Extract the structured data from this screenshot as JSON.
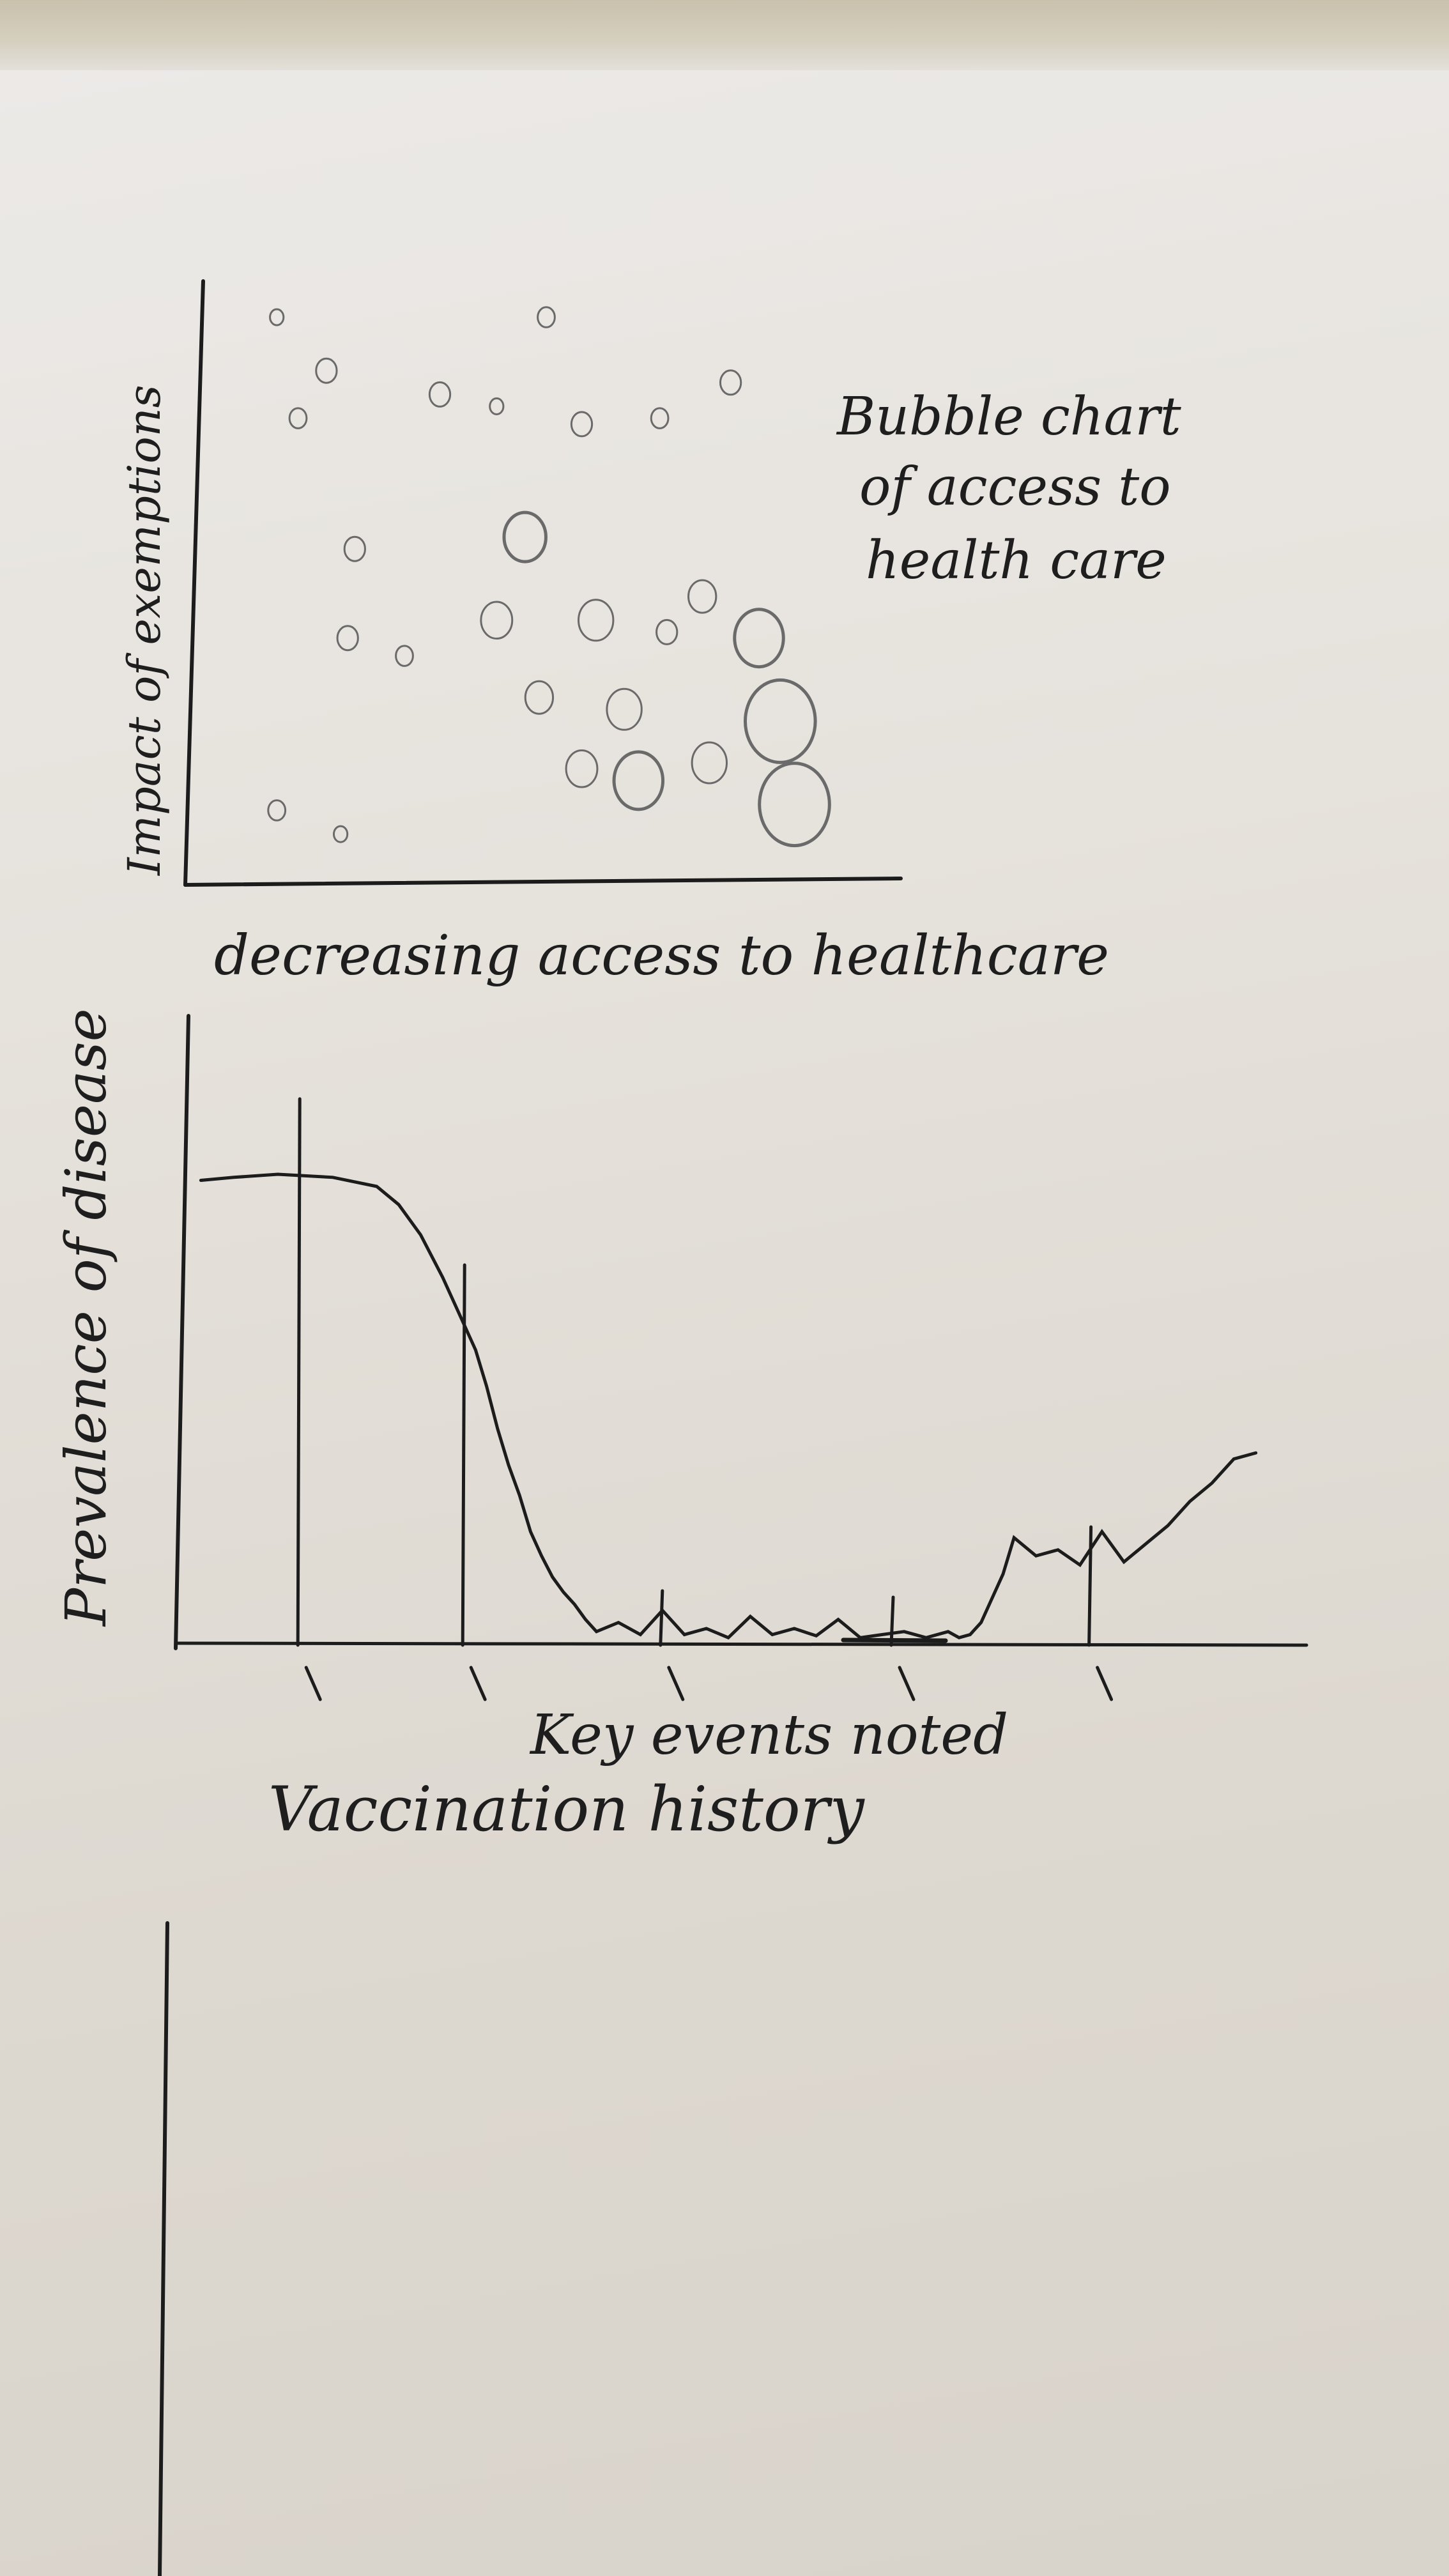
{
  "chart_data": [
    {
      "type": "scatter",
      "subtype": "bubble",
      "title": "Bubble chart of access to health care",
      "title_lines": [
        "Bubble chart",
        "of access to",
        "health care"
      ],
      "xlabel": "decreasing access to healthcare",
      "ylabel": "Impact of exemptions",
      "xlim": [
        0,
        100
      ],
      "ylim": [
        0,
        100
      ],
      "grid": false,
      "legend": "none",
      "tick_labels": false,
      "points": [
        {
          "x": 12,
          "y": 95,
          "size": 1
        },
        {
          "x": 19,
          "y": 86,
          "size": 2
        },
        {
          "x": 15,
          "y": 78,
          "size": 1.5
        },
        {
          "x": 35,
          "y": 82,
          "size": 2
        },
        {
          "x": 43,
          "y": 80,
          "size": 1
        },
        {
          "x": 50,
          "y": 95,
          "size": 1.5
        },
        {
          "x": 55,
          "y": 77,
          "size": 2
        },
        {
          "x": 66,
          "y": 78,
          "size": 1.5
        },
        {
          "x": 76,
          "y": 84,
          "size": 2
        },
        {
          "x": 23,
          "y": 56,
          "size": 2
        },
        {
          "x": 47,
          "y": 58,
          "size": 5
        },
        {
          "x": 22,
          "y": 41,
          "size": 2
        },
        {
          "x": 30,
          "y": 38,
          "size": 1.5
        },
        {
          "x": 43,
          "y": 44,
          "size": 3.5
        },
        {
          "x": 57,
          "y": 44,
          "size": 4
        },
        {
          "x": 72,
          "y": 48,
          "size": 3
        },
        {
          "x": 67,
          "y": 42,
          "size": 2
        },
        {
          "x": 80,
          "y": 41,
          "size": 6
        },
        {
          "x": 49,
          "y": 31,
          "size": 3
        },
        {
          "x": 61,
          "y": 29,
          "size": 4
        },
        {
          "x": 55,
          "y": 19,
          "size": 3.5
        },
        {
          "x": 63,
          "y": 17,
          "size": 6
        },
        {
          "x": 73,
          "y": 20,
          "size": 4
        },
        {
          "x": 83,
          "y": 27,
          "size": 9
        },
        {
          "x": 85,
          "y": 13,
          "size": 9
        },
        {
          "x": 12,
          "y": 12,
          "size": 1.5
        },
        {
          "x": 21,
          "y": 8,
          "size": 1
        }
      ]
    },
    {
      "type": "line",
      "title": "",
      "xlabel": "Vaccination history",
      "ylabel": "Prevalence of disease",
      "annotation": "Key events noted",
      "xlim": [
        0,
        100
      ],
      "ylim": [
        0,
        100
      ],
      "grid": false,
      "legend": "none",
      "tick_labels": false,
      "x": [
        2,
        5,
        9,
        14,
        18,
        20,
        22,
        24,
        26,
        27,
        28,
        29,
        30,
        31,
        32,
        33,
        34,
        35,
        36,
        37,
        38,
        40,
        42,
        44,
        46,
        48,
        50,
        52,
        54,
        56,
        58,
        60,
        62,
        64,
        66,
        68,
        70,
        71,
        72,
        73,
        74,
        75,
        76,
        78,
        80,
        82,
        84,
        86,
        88,
        90,
        92,
        94,
        96,
        98
      ],
      "y": [
        76,
        76.5,
        77,
        76.5,
        75,
        72,
        67,
        60,
        52,
        48,
        42,
        35,
        29,
        24,
        18,
        14,
        10.5,
        8,
        6,
        3.5,
        1.5,
        3,
        1,
        5,
        1,
        2,
        0.5,
        4,
        1,
        2,
        0.8,
        3.5,
        0.5,
        1,
        1.5,
        0.5,
        1.5,
        0.5,
        1,
        3,
        7,
        11,
        17,
        14,
        15,
        12.5,
        18,
        13,
        16,
        19,
        23,
        26,
        30,
        31
      ],
      "key_events_x": [
        11,
        26,
        44,
        65,
        83
      ]
    }
  ],
  "ink": {
    "pen": "#1c1c1c",
    "pencil": "#6a6a6a"
  }
}
